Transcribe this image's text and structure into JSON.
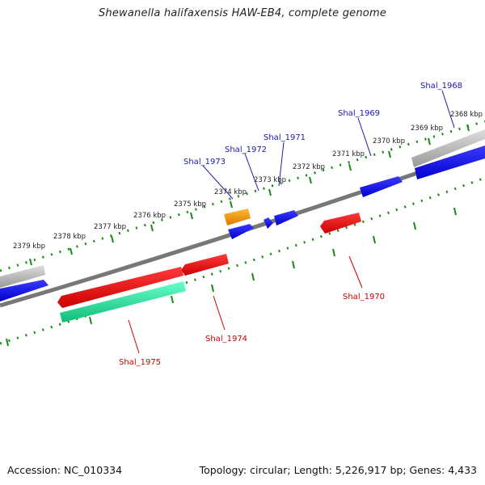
{
  "title": "Shewanella halifaxensis HAW-EB4, complete genome",
  "footer": {
    "accession": "Accession: NC_010334",
    "summary": "Topology: circular; Length: 5,226,917 bp; Genes: 4,433"
  },
  "colors": {
    "forward_gene": "#0000ee",
    "reverse_gene": "#ee0000",
    "rna_gene": "#ff9900",
    "reverse_other": "#22ee99",
    "pseudo_grey": "#bbbbbb",
    "backbone": "#777777",
    "tick_green": "#1a8a1a",
    "forward_label": "#1a1aaa",
    "reverse_label": "#cc0000"
  },
  "kbp_labels": [
    "2368 kbp",
    "2369 kbp",
    "2370 kbp",
    "2371 kbp",
    "2372 kbp",
    "2373 kbp",
    "2374 kbp",
    "2375 kbp",
    "2376 kbp",
    "2377 kbp",
    "2378 kbp",
    "2379 kbp"
  ],
  "forward_gene_labels": [
    "Shal_1968",
    "Shal_1969",
    "Shal_1971",
    "Shal_1972",
    "Shal_1973"
  ],
  "reverse_gene_labels": [
    "Shal_1970",
    "Shal_1974",
    "Shal_1975"
  ]
}
